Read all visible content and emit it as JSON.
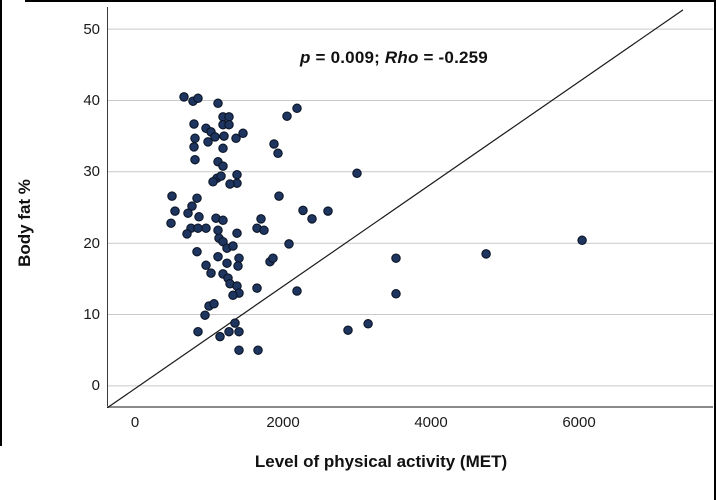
{
  "figure": {
    "annotation": {
      "full_text": "p = 0.009; Rho = -0.259",
      "parts": [
        {
          "text": "p",
          "italic": true
        },
        {
          "text": " = 0.009; ",
          "italic": false
        },
        {
          "text": "Rho",
          "italic": true
        },
        {
          "text": " = -0.259",
          "italic": false
        }
      ]
    },
    "colors": {
      "point_fill": "#1e3560",
      "point_stroke": "#0b1526",
      "gridline": "#c9c9c9",
      "y_axis_line": "#3a3a3a",
      "x_axis_line": "#8a8a8a",
      "reference_line": "#1a1a1a"
    }
  },
  "chart_data": {
    "type": "scatter",
    "title": "",
    "xlabel": "Level of physical activity (MET)",
    "ylabel": "Body fat %",
    "annotation": "p = 0.009; Rho = -0.259",
    "x_ticks": [
      0,
      2000,
      4000,
      6000
    ],
    "y_ticks": [
      0,
      10,
      20,
      30,
      40,
      50
    ],
    "xlim": [
      -378,
      7809
    ],
    "ylim": [
      -3.1,
      53.1
    ],
    "grid": "horizontal-only",
    "legend": "none",
    "reference_line": {
      "x1": -378,
      "y1": -3.1,
      "x2": 7404,
      "y2": 52.7
    },
    "points": [
      [
        662,
        40.5
      ],
      [
        784,
        39.9
      ],
      [
        851,
        40.3
      ],
      [
        1122,
        39.6
      ],
      [
        797,
        36.7
      ],
      [
        959,
        36.1
      ],
      [
        1189,
        37.7
      ],
      [
        1270,
        37.7
      ],
      [
        1189,
        36.6
      ],
      [
        1270,
        36.6
      ],
      [
        1027,
        35.6
      ],
      [
        1081,
        34.9
      ],
      [
        1203,
        35.0
      ],
      [
        1365,
        34.7
      ],
      [
        1459,
        35.4
      ],
      [
        986,
        34.2
      ],
      [
        811,
        34.7
      ],
      [
        797,
        33.5
      ],
      [
        1189,
        33.3
      ],
      [
        1878,
        33.9
      ],
      [
        1932,
        32.6
      ],
      [
        2054,
        37.8
      ],
      [
        2189,
        38.9
      ],
      [
        811,
        31.7
      ],
      [
        1122,
        31.4
      ],
      [
        1189,
        30.8
      ],
      [
        1108,
        29.1
      ],
      [
        1162,
        29.4
      ],
      [
        1378,
        29.6
      ],
      [
        1378,
        28.4
      ],
      [
        1284,
        28.3
      ],
      [
        1054,
        28.6
      ],
      [
        500,
        26.6
      ],
      [
        838,
        26.3
      ],
      [
        1946,
        26.6
      ],
      [
        770,
        25.2
      ],
      [
        540,
        24.5
      ],
      [
        716,
        24.2
      ],
      [
        865,
        23.7
      ],
      [
        486,
        22.8
      ],
      [
        757,
        22.1
      ],
      [
        851,
        22.1
      ],
      [
        959,
        22.1
      ],
      [
        703,
        21.3
      ],
      [
        1094,
        23.5
      ],
      [
        1189,
        23.2
      ],
      [
        1122,
        21.8
      ],
      [
        1135,
        20.7
      ],
      [
        1189,
        20.2
      ],
      [
        1243,
        19.3
      ],
      [
        1324,
        19.6
      ],
      [
        1378,
        21.4
      ],
      [
        1703,
        23.4
      ],
      [
        1649,
        22.1
      ],
      [
        1743,
        21.8
      ],
      [
        2081,
        19.9
      ],
      [
        838,
        18.8
      ],
      [
        1122,
        18.1
      ],
      [
        1243,
        17.2
      ],
      [
        1405,
        17.9
      ],
      [
        1392,
        16.8
      ],
      [
        959,
        16.9
      ],
      [
        1027,
        15.8
      ],
      [
        1189,
        15.7
      ],
      [
        1257,
        15.1
      ],
      [
        1284,
        14.3
      ],
      [
        1378,
        14.0
      ],
      [
        1405,
        13.0
      ],
      [
        1649,
        13.7
      ],
      [
        1324,
        12.7
      ],
      [
        1824,
        17.4
      ],
      [
        1865,
        17.9
      ],
      [
        2189,
        13.3
      ],
      [
        2270,
        24.6
      ],
      [
        2392,
        23.4
      ],
      [
        2608,
        24.5
      ],
      [
        3000,
        29.8
      ],
      [
        1000,
        11.2
      ],
      [
        1068,
        11.5
      ],
      [
        946,
        9.9
      ],
      [
        851,
        7.6
      ],
      [
        1149,
        6.9
      ],
      [
        1270,
        7.6
      ],
      [
        1405,
        7.6
      ],
      [
        1351,
        8.8
      ],
      [
        1405,
        5.0
      ],
      [
        1662,
        5.0
      ],
      [
        3527,
        17.9
      ],
      [
        4743,
        18.5
      ],
      [
        3527,
        12.9
      ],
      [
        2878,
        7.8
      ],
      [
        3149,
        8.7
      ],
      [
        6041,
        20.4
      ]
    ]
  }
}
